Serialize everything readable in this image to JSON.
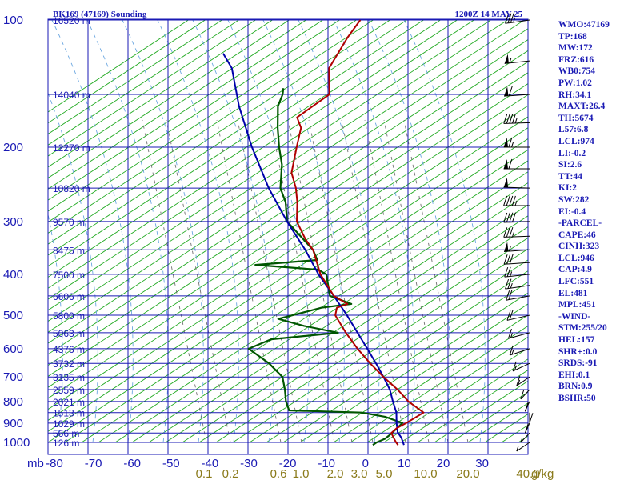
{
  "header": {
    "title": "BK169 (47169) Sounding",
    "timestamp": "1200Z 14 MAY 25"
  },
  "indices": [
    "WMO:47169",
    "TP:168",
    "MW:172",
    "FRZ:616",
    "WB0:754",
    "PW:1.02",
    "RH:34.1",
    "MAXT:26.4",
    "TH:5674",
    "L57:6.8",
    "LCL:974",
    "LI:-0.2",
    "SI:2.6",
    "TT:44",
    "KI:2",
    "SW:282",
    "EI:-0.4",
    "-PARCEL-",
    "CAPE:46",
    "CINH:323",
    "LCL:946",
    "CAP:4.9",
    "LFC:551",
    "EL:481",
    "MPL:451",
    "-WIND-",
    "STM:255/20",
    "HEL:157",
    "SHR+:0.0",
    "SRDS:-91",
    "EHI:0.1",
    "BRN:0.9",
    "BSHR:50"
  ],
  "colors": {
    "grid": "#1a1ab4",
    "dry_adiabat": "#22aa22",
    "temperature": "#b00000",
    "dewpoint": "#005500",
    "parcel": "#0000aa",
    "moist_adiabat": "#6aa6e0",
    "mixing_ratio": "#707070"
  },
  "chart_data": {
    "type": "skew-t",
    "unit_label": "mb",
    "mixing_ratio_unit": "g/kg",
    "pressure_levels": [
      100,
      200,
      300,
      400,
      500,
      600,
      700,
      800,
      900,
      1000
    ],
    "temperature_ticks": [
      -80,
      -70,
      -60,
      -50,
      -40,
      -30,
      -20,
      -10,
      0,
      10,
      20,
      30
    ],
    "mixing_ratio_labels": [
      "0.1",
      "0.2",
      "0.6",
      "1.0",
      "2.0",
      "3.0",
      "5.0",
      "10.0",
      "20.0",
      "40.0"
    ],
    "height_labels": [
      {
        "text": "16520 m",
        "pressure": 100
      },
      {
        "text": "14040 m",
        "pressure": 150
      },
      {
        "text": "12270 m",
        "pressure": 200
      },
      {
        "text": "10820 m",
        "pressure": 250
      },
      {
        "text": "9570 m",
        "pressure": 300
      },
      {
        "text": "8475 m",
        "pressure": 350
      },
      {
        "text": "7500 m",
        "pressure": 400
      },
      {
        "text": "6606 m",
        "pressure": 450
      },
      {
        "text": "5800 m",
        "pressure": 500
      },
      {
        "text": "5063 m",
        "pressure": 550
      },
      {
        "text": "4376 m",
        "pressure": 600
      },
      {
        "text": "3732 m",
        "pressure": 650
      },
      {
        "text": "3135 m",
        "pressure": 700
      },
      {
        "text": "2559 m",
        "pressure": 750
      },
      {
        "text": "2021 m",
        "pressure": 800
      },
      {
        "text": "1513 m",
        "pressure": 850
      },
      {
        "text": "1029 m",
        "pressure": 900
      },
      {
        "text": "566 m",
        "pressure": 950
      },
      {
        "text": "126 m",
        "pressure": 1000
      }
    ],
    "temperature_profile": [
      [
        1014,
        18.5
      ],
      [
        1000,
        17.5
      ],
      [
        975,
        16
      ],
      [
        950,
        14.5
      ],
      [
        925,
        15
      ],
      [
        900,
        16.5
      ],
      [
        850,
        19
      ],
      [
        800,
        13
      ],
      [
        750,
        8
      ],
      [
        700,
        2
      ],
      [
        650,
        -4
      ],
      [
        600,
        -10
      ],
      [
        550,
        -16
      ],
      [
        500,
        -22
      ],
      [
        480,
        -23
      ],
      [
        470,
        -21
      ],
      [
        450,
        -26
      ],
      [
        400,
        -33.5
      ],
      [
        350,
        -40
      ],
      [
        330,
        -44
      ],
      [
        300,
        -49.5
      ],
      [
        270,
        -53
      ],
      [
        250,
        -56
      ],
      [
        230,
        -60
      ],
      [
        200,
        -63.5
      ],
      [
        180,
        -66
      ],
      [
        170,
        -69
      ],
      [
        150,
        -65
      ],
      [
        130,
        -70
      ],
      [
        110,
        -71
      ],
      [
        100,
        -71
      ]
    ],
    "dewpoint_profile": [
      [
        1014,
        12
      ],
      [
        1000,
        12.5
      ],
      [
        980,
        14
      ],
      [
        960,
        14.5
      ],
      [
        930,
        15
      ],
      [
        900,
        15.5
      ],
      [
        870,
        10
      ],
      [
        850,
        3
      ],
      [
        840,
        -16
      ],
      [
        800,
        -18.5
      ],
      [
        750,
        -21
      ],
      [
        700,
        -24
      ],
      [
        650,
        -30
      ],
      [
        600,
        -38
      ],
      [
        570,
        -34
      ],
      [
        550,
        -18
      ],
      [
        530,
        -28
      ],
      [
        510,
        -36
      ],
      [
        500,
        -33
      ],
      [
        480,
        -27
      ],
      [
        470,
        -20
      ],
      [
        450,
        -27
      ],
      [
        400,
        -32
      ],
      [
        390,
        -35
      ],
      [
        380,
        -52
      ],
      [
        370,
        -37
      ],
      [
        350,
        -40
      ],
      [
        300,
        -52
      ],
      [
        270,
        -56
      ],
      [
        250,
        -60
      ],
      [
        220,
        -64
      ],
      [
        200,
        -68
      ],
      [
        180,
        -72
      ],
      [
        160,
        -76
      ],
      [
        150,
        -77
      ],
      [
        145,
        -78
      ]
    ],
    "parcel_profile": [
      [
        1014,
        20
      ],
      [
        975,
        18
      ],
      [
        946,
        16
      ],
      [
        900,
        14
      ],
      [
        850,
        12
      ],
      [
        800,
        9
      ],
      [
        750,
        6
      ],
      [
        700,
        2
      ],
      [
        650,
        -2.5
      ],
      [
        600,
        -7.5
      ],
      [
        550,
        -13
      ],
      [
        500,
        -19
      ],
      [
        450,
        -26
      ],
      [
        400,
        -34
      ],
      [
        350,
        -42
      ],
      [
        300,
        -52
      ],
      [
        250,
        -63
      ],
      [
        200,
        -75
      ],
      [
        160,
        -86
      ],
      [
        130,
        -95
      ],
      [
        120,
        -100
      ]
    ],
    "wind_barbs": [
      {
        "pressure": 100,
        "direction": 250,
        "speed": 35
      },
      {
        "pressure": 125,
        "direction": 255,
        "speed": 55
      },
      {
        "pressure": 150,
        "direction": 260,
        "speed": 60
      },
      {
        "pressure": 175,
        "direction": 265,
        "speed": 45
      },
      {
        "pressure": 200,
        "direction": 270,
        "speed": 65
      },
      {
        "pressure": 225,
        "direction": 270,
        "speed": 60
      },
      {
        "pressure": 250,
        "direction": 275,
        "speed": 50
      },
      {
        "pressure": 275,
        "direction": 270,
        "speed": 45
      },
      {
        "pressure": 300,
        "direction": 265,
        "speed": 40
      },
      {
        "pressure": 325,
        "direction": 265,
        "speed": 35
      },
      {
        "pressure": 350,
        "direction": 260,
        "speed": 55
      },
      {
        "pressure": 375,
        "direction": 260,
        "speed": 30
      },
      {
        "pressure": 400,
        "direction": 255,
        "speed": 25
      },
      {
        "pressure": 425,
        "direction": 250,
        "speed": 25
      },
      {
        "pressure": 450,
        "direction": 245,
        "speed": 20
      },
      {
        "pressure": 500,
        "direction": 240,
        "speed": 20
      },
      {
        "pressure": 550,
        "direction": 235,
        "speed": 15
      },
      {
        "pressure": 600,
        "direction": 230,
        "speed": 15
      },
      {
        "pressure": 650,
        "direction": 220,
        "speed": 15
      },
      {
        "pressure": 700,
        "direction": 210,
        "speed": 15
      },
      {
        "pressure": 750,
        "direction": 200,
        "speed": 10
      },
      {
        "pressure": 800,
        "direction": 190,
        "speed": 10
      },
      {
        "pressure": 850,
        "direction": 180,
        "speed": 10
      },
      {
        "pressure": 900,
        "direction": 170,
        "speed": 10
      },
      {
        "pressure": 950,
        "direction": 160,
        "speed": 5
      },
      {
        "pressure": 1000,
        "direction": 150,
        "speed": 5
      }
    ]
  }
}
